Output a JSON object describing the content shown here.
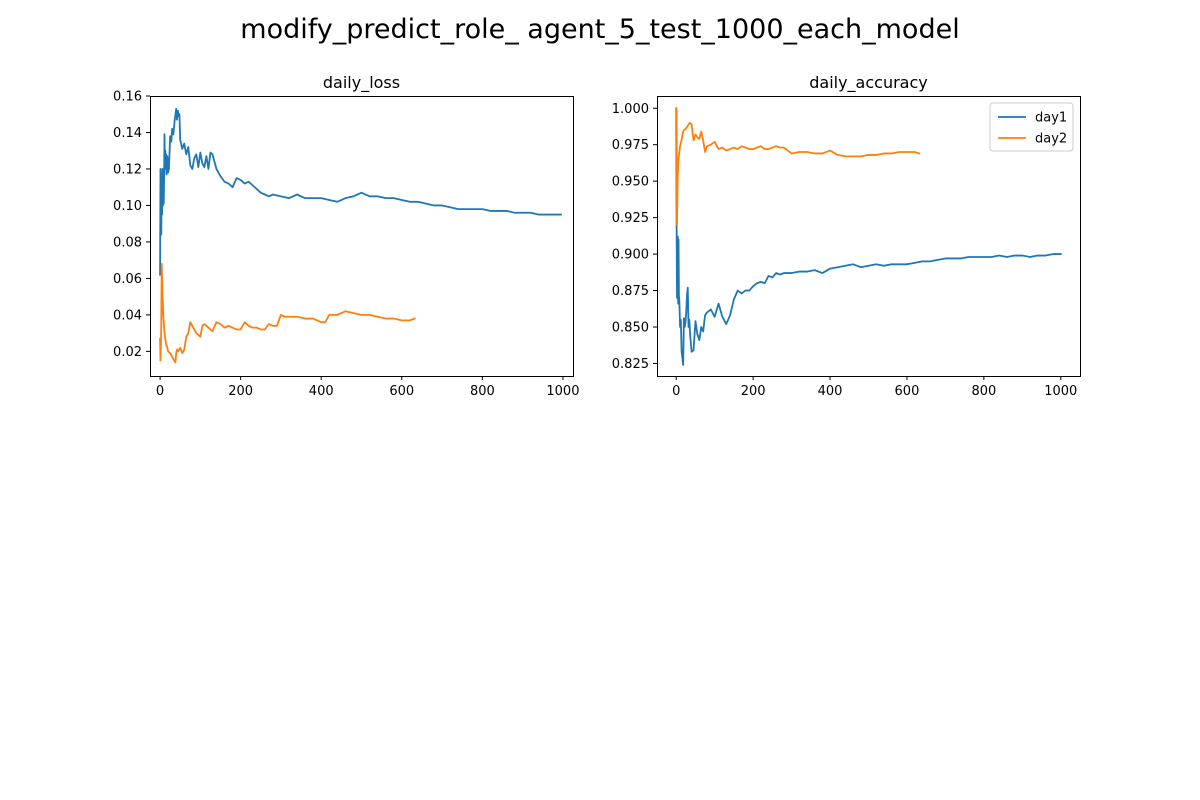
{
  "figure": {
    "suptitle": "modify_predict_role_ agent_5_test_1000_each_model"
  },
  "colors": {
    "day1": "#1f77b4",
    "day2": "#ff7f0e"
  },
  "chart_data": [
    {
      "type": "line",
      "title": "daily_loss",
      "xlabel": "",
      "ylabel": "",
      "xlim": [
        -25,
        1025
      ],
      "ylim": [
        0.0065,
        0.16
      ],
      "xticks": [
        0,
        200,
        400,
        600,
        800,
        1000
      ],
      "xtick_labels": [
        "0",
        "200",
        "400",
        "600",
        "800",
        "1000"
      ],
      "yticks": [
        0.02,
        0.04,
        0.06,
        0.08,
        0.1,
        0.12,
        0.14,
        0.16
      ],
      "ytick_labels": [
        "0.02",
        "0.04",
        "0.06",
        "0.08",
        "0.10",
        "0.12",
        "0.14",
        "0.16"
      ],
      "grid": false,
      "legend": null,
      "series": [
        {
          "key": "day1",
          "x": [
            0,
            1,
            2,
            3,
            4,
            5,
            6,
            7,
            8,
            9,
            10,
            11,
            12,
            13,
            14,
            15,
            16,
            18,
            20,
            22,
            25,
            28,
            30,
            33,
            36,
            40,
            42,
            44,
            46,
            48,
            50,
            55,
            60,
            65,
            70,
            75,
            80,
            85,
            90,
            95,
            100,
            105,
            110,
            115,
            120,
            125,
            130,
            135,
            140,
            150,
            160,
            170,
            180,
            190,
            200,
            210,
            220,
            230,
            240,
            250,
            260,
            270,
            280,
            300,
            320,
            340,
            360,
            380,
            400,
            420,
            440,
            460,
            480,
            500,
            520,
            540,
            560,
            580,
            600,
            620,
            640,
            660,
            680,
            700,
            720,
            740,
            760,
            780,
            800,
            820,
            840,
            860,
            880,
            900,
            920,
            940,
            960,
            980,
            995
          ],
          "y": [
            0.062,
            0.12,
            0.11,
            0.084,
            0.115,
            0.095,
            0.12,
            0.1,
            0.115,
            0.101,
            0.115,
            0.139,
            0.12,
            0.13,
            0.121,
            0.128,
            0.117,
            0.127,
            0.118,
            0.12,
            0.138,
            0.135,
            0.142,
            0.139,
            0.146,
            0.153,
            0.147,
            0.152,
            0.149,
            0.15,
            0.136,
            0.131,
            0.134,
            0.128,
            0.132,
            0.122,
            0.12,
            0.126,
            0.128,
            0.121,
            0.129,
            0.123,
            0.121,
            0.127,
            0.12,
            0.129,
            0.128,
            0.124,
            0.12,
            0.116,
            0.113,
            0.112,
            0.11,
            0.115,
            0.114,
            0.112,
            0.113,
            0.111,
            0.109,
            0.107,
            0.106,
            0.105,
            0.106,
            0.105,
            0.104,
            0.106,
            0.104,
            0.104,
            0.104,
            0.103,
            0.102,
            0.104,
            0.105,
            0.107,
            0.105,
            0.105,
            0.104,
            0.104,
            0.103,
            0.102,
            0.102,
            0.101,
            0.1,
            0.1,
            0.099,
            0.098,
            0.098,
            0.098,
            0.098,
            0.097,
            0.097,
            0.097,
            0.096,
            0.096,
            0.096,
            0.095,
            0.095,
            0.095,
            0.095
          ]
        },
        {
          "key": "day2",
          "x": [
            0,
            1,
            2,
            3,
            4,
            5,
            6,
            7,
            8,
            10,
            12,
            15,
            18,
            20,
            25,
            30,
            35,
            38,
            40,
            42,
            45,
            50,
            55,
            60,
            65,
            70,
            75,
            80,
            90,
            100,
            105,
            110,
            120,
            130,
            140,
            150,
            160,
            170,
            180,
            190,
            200,
            210,
            220,
            230,
            240,
            250,
            260,
            270,
            280,
            290,
            300,
            310,
            320,
            340,
            360,
            380,
            400,
            410,
            420,
            440,
            460,
            480,
            500,
            520,
            540,
            560,
            580,
            600,
            620,
            632
          ],
          "y": [
            0.027,
            0.015,
            0.022,
            0.035,
            0.068,
            0.06,
            0.05,
            0.046,
            0.04,
            0.033,
            0.028,
            0.024,
            0.022,
            0.02,
            0.019,
            0.017,
            0.015,
            0.014,
            0.019,
            0.021,
            0.02,
            0.022,
            0.019,
            0.021,
            0.028,
            0.03,
            0.036,
            0.034,
            0.03,
            0.028,
            0.034,
            0.035,
            0.033,
            0.031,
            0.036,
            0.035,
            0.033,
            0.034,
            0.033,
            0.032,
            0.032,
            0.036,
            0.034,
            0.033,
            0.033,
            0.032,
            0.032,
            0.035,
            0.034,
            0.034,
            0.04,
            0.039,
            0.039,
            0.039,
            0.038,
            0.038,
            0.036,
            0.036,
            0.04,
            0.04,
            0.042,
            0.041,
            0.04,
            0.04,
            0.039,
            0.038,
            0.038,
            0.037,
            0.037,
            0.038
          ]
        }
      ]
    },
    {
      "type": "line",
      "title": "daily_accuracy",
      "xlabel": "",
      "ylabel": "",
      "xlim": [
        -50,
        1050
      ],
      "ylim": [
        0.8164,
        1.0084
      ],
      "xticks": [
        0,
        200,
        400,
        600,
        800,
        1000
      ],
      "xtick_labels": [
        "0",
        "200",
        "400",
        "600",
        "800",
        "1000"
      ],
      "yticks": [
        0.825,
        0.85,
        0.875,
        0.9,
        0.925,
        0.95,
        0.975,
        1.0
      ],
      "ytick_labels": [
        "0.825",
        "0.850",
        "0.875",
        "0.900",
        "0.925",
        "0.950",
        "0.975",
        "1.000"
      ],
      "grid": false,
      "legend": {
        "placement": "upper-right",
        "entries": [
          "day1",
          "day2"
        ]
      },
      "series": [
        {
          "key": "day1",
          "name": "day1",
          "x": [
            0,
            1,
            2,
            3,
            4,
            5,
            6,
            7,
            8,
            10,
            12,
            14,
            16,
            18,
            20,
            22,
            24,
            26,
            28,
            30,
            32,
            34,
            36,
            40,
            45,
            50,
            55,
            60,
            65,
            70,
            75,
            80,
            90,
            100,
            110,
            120,
            130,
            140,
            150,
            160,
            170,
            180,
            190,
            200,
            210,
            220,
            230,
            240,
            250,
            260,
            270,
            280,
            300,
            320,
            340,
            360,
            380,
            400,
            420,
            440,
            460,
            480,
            500,
            520,
            540,
            560,
            580,
            600,
            620,
            640,
            660,
            680,
            700,
            720,
            740,
            760,
            780,
            800,
            820,
            840,
            860,
            880,
            900,
            920,
            940,
            960,
            980,
            1000
          ],
          "y": [
            1.0,
            0.92,
            0.87,
            0.88,
            0.912,
            0.866,
            0.91,
            0.871,
            0.869,
            0.85,
            0.855,
            0.833,
            0.829,
            0.824,
            0.856,
            0.85,
            0.853,
            0.86,
            0.872,
            0.877,
            0.85,
            0.855,
            0.845,
            0.833,
            0.834,
            0.854,
            0.845,
            0.841,
            0.85,
            0.847,
            0.858,
            0.86,
            0.862,
            0.857,
            0.866,
            0.857,
            0.852,
            0.858,
            0.869,
            0.875,
            0.873,
            0.875,
            0.875,
            0.878,
            0.88,
            0.881,
            0.88,
            0.885,
            0.884,
            0.887,
            0.886,
            0.887,
            0.887,
            0.888,
            0.888,
            0.889,
            0.887,
            0.89,
            0.891,
            0.892,
            0.893,
            0.891,
            0.892,
            0.893,
            0.892,
            0.893,
            0.893,
            0.893,
            0.894,
            0.895,
            0.895,
            0.896,
            0.897,
            0.897,
            0.897,
            0.898,
            0.898,
            0.898,
            0.898,
            0.899,
            0.898,
            0.899,
            0.899,
            0.898,
            0.899,
            0.899,
            0.9,
            0.9
          ]
        },
        {
          "key": "day2",
          "name": "day2",
          "x": [
            0,
            1,
            2,
            3,
            4,
            5,
            6,
            8,
            10,
            12,
            15,
            18,
            20,
            25,
            30,
            35,
            40,
            45,
            50,
            55,
            60,
            65,
            70,
            75,
            80,
            90,
            100,
            110,
            120,
            130,
            140,
            150,
            160,
            170,
            180,
            190,
            200,
            210,
            220,
            230,
            240,
            250,
            260,
            270,
            280,
            290,
            300,
            320,
            340,
            360,
            380,
            400,
            420,
            440,
            460,
            480,
            500,
            520,
            540,
            560,
            580,
            600,
            620,
            632
          ],
          "y": [
            1.0,
            0.998,
            0.92,
            0.94,
            0.955,
            0.96,
            0.965,
            0.97,
            0.974,
            0.976,
            0.98,
            0.984,
            0.985,
            0.986,
            0.988,
            0.99,
            0.989,
            0.978,
            0.982,
            0.98,
            0.979,
            0.984,
            0.978,
            0.97,
            0.974,
            0.975,
            0.977,
            0.972,
            0.973,
            0.971,
            0.972,
            0.973,
            0.972,
            0.974,
            0.973,
            0.972,
            0.972,
            0.973,
            0.974,
            0.972,
            0.972,
            0.973,
            0.974,
            0.973,
            0.973,
            0.971,
            0.969,
            0.97,
            0.97,
            0.969,
            0.969,
            0.971,
            0.968,
            0.967,
            0.967,
            0.967,
            0.968,
            0.968,
            0.969,
            0.969,
            0.97,
            0.97,
            0.97,
            0.969
          ]
        }
      ]
    }
  ]
}
